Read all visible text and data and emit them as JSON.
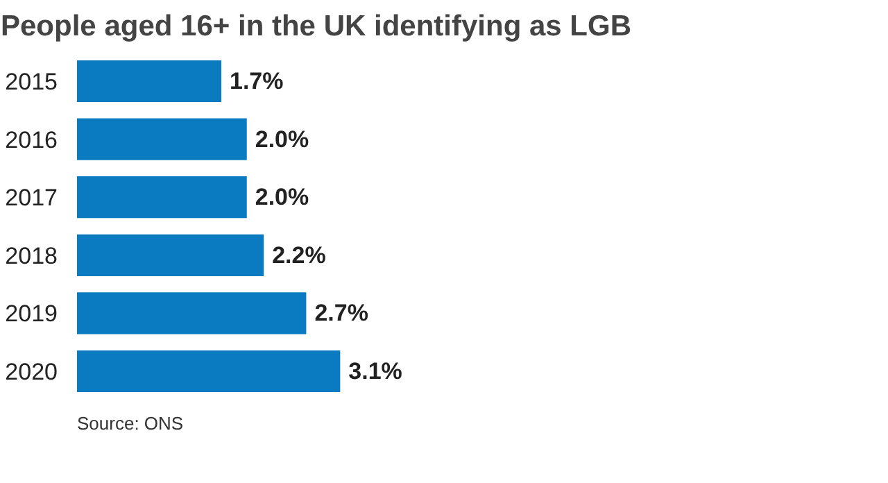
{
  "chart_data": {
    "type": "bar",
    "orientation": "horizontal",
    "title": "People aged 16+ in the UK identifying as LGB",
    "categories": [
      "2015",
      "2016",
      "2017",
      "2018",
      "2019",
      "2020"
    ],
    "values": [
      1.7,
      2.0,
      2.0,
      2.2,
      2.7,
      3.1
    ],
    "value_labels": [
      "1.7%",
      "2.0%",
      "2.0%",
      "2.2%",
      "2.7%",
      "3.1%"
    ],
    "color": "#0a7bc1",
    "grid": false,
    "annotations": [
      "Source: ONS"
    ]
  }
}
